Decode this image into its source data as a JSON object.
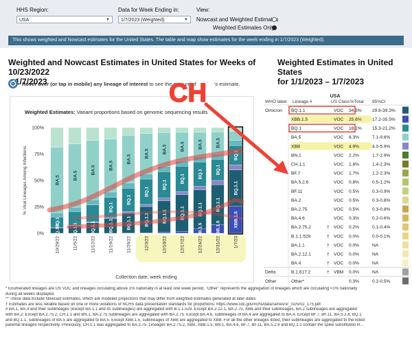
{
  "header": {
    "region_label": "HHS Region:",
    "region_value": "USA",
    "week_label": "Data for Week Ending in:",
    "week_value": "1/7/2023 (Weighted)",
    "view_label": "View:",
    "view_options": [
      "Nowcast and Weighted Estimates",
      "Weighted Estimates Only"
    ],
    "view_selected": 1
  },
  "banner": "This shows weighted and Nowcast estimates for the United States. The table and map show estimates for the week ending in 1/7/2023 (Weighted).",
  "left_heading_1": "Weighted and Nowcast Estimates in United States for Weeks of 10/23/2022",
  "left_heading_2": "– 1/7/2023",
  "hover_bold": "Hover over (or tap in mobile) any lineage of interest",
  "hover_rest": " to see the amount of",
  "hover_end": "'s estimate.",
  "right_heading_1": "Weighted Estimates in United States",
  "right_heading_2": "for 1/1/2023 – 1/7/2023",
  "annotation": "CH",
  "chart_data": {
    "type": "bar",
    "title_bold": "Weighted Estimates:",
    "title": "Variant proportions based on genomic sequencing results",
    "xlabel": "Collection date, week ending",
    "ylabel": "% Viral Lineages Among Infections",
    "ylim": [
      0,
      100
    ],
    "ytick_labels": [
      "0%",
      "25%",
      "50%",
      "75%",
      "100%"
    ],
    "categories": [
      "10/29/22",
      "11/5/22",
      "11/12/22",
      "11/19/22",
      "11/26/22",
      "12/3/22",
      "12/10/22",
      "12/17/22",
      "12/24/22",
      "12/31/22",
      "1/7/23"
    ],
    "series": [
      {
        "name": "XBB.1.5",
        "color": "#3b4fb8",
        "values": [
          0,
          0,
          0,
          0,
          0.1,
          0.3,
          0.8,
          1.5,
          4,
          8,
          25.6
        ]
      },
      {
        "name": "BQ.1.1",
        "color": "#1d5f72",
        "values": [
          5,
          7,
          10,
          14,
          19,
          25,
          30,
          35,
          37,
          38,
          34.3
        ]
      },
      {
        "name": "XBB",
        "color": "#8a86c8",
        "values": [
          0.3,
          0.5,
          0.8,
          1,
          1.5,
          2,
          2.5,
          3,
          3.5,
          4,
          4.9
        ]
      },
      {
        "name": "BQ.1",
        "color": "#2a8a95",
        "values": [
          10,
          13,
          16,
          19,
          22,
          24,
          25,
          24,
          23,
          20,
          18.1
        ]
      },
      {
        "name": "Other",
        "color": "#68b9c1",
        "values": [
          4,
          4,
          5,
          5,
          5,
          5,
          5,
          5,
          5,
          5,
          5
        ]
      },
      {
        "name": "BA.5",
        "color": "#8fd1c9",
        "values": [
          62,
          60,
          56,
          50,
          45,
          38,
          32,
          27,
          23,
          21,
          8.3
        ]
      },
      {
        "name": "BA.2 / BA.4.6 / BF.7",
        "color": "#b9e3cf",
        "values": [
          18.7,
          15.5,
          12.2,
          11,
          7.4,
          5.7,
          4.7,
          4.5,
          4.5,
          4,
          3.8
        ]
      }
    ],
    "bar_labels": [
      [
        "BA.5",
        "BQ.1.1",
        "BQ.1"
      ],
      [
        "BA.5",
        "BQ.1.1"
      ],
      [
        "BA.5",
        "BQ.1.1"
      ],
      [
        "BA.5",
        "BQ.1",
        "BQ.1.1"
      ],
      [
        "BA.5",
        "BQ.1.1",
        "BQ.1"
      ],
      [
        "BA.5",
        "BQ.1.1",
        "BQ.1"
      ],
      [
        "BA.5",
        "BQ.1.1",
        "BQ.1"
      ],
      [
        "BA.5",
        "BQ.1.1",
        "BQ.1"
      ],
      [
        "BA.5",
        "BQ.1.1",
        "BQ.1",
        "XBB.1.5"
      ],
      [
        "BA.5",
        "BQ.1.1",
        "BQ.1",
        "XBB.1.5"
      ],
      [
        "BQ.1.1",
        "BQ.1",
        "XBB.1.5"
      ]
    ]
  },
  "table": {
    "region_title": "USA",
    "headers": [
      "WHO label",
      "Lineage #",
      "US Class",
      "%Total",
      "95%CI"
    ],
    "rows": [
      {
        "who": "Omicron",
        "lineage": "BQ.1.1",
        "sym": "",
        "cls": "VOC",
        "pct": "34.3%",
        "ci": "29.6-39.3%",
        "color": "#1d5f72",
        "box": true,
        "hl": false
      },
      {
        "who": "",
        "lineage": "XBB.1.5",
        "sym": "",
        "cls": "VOC",
        "pct": "25.6%",
        "ci": "17.2-35.5%",
        "color": "#3b4fb8",
        "box": false,
        "hl": true
      },
      {
        "who": "",
        "lineage": "BQ.1",
        "sym": "",
        "cls": "VOC",
        "pct": "18.1%",
        "ci": "15.3-21.2%",
        "color": "#2a8a95",
        "box": true,
        "hl": false
      },
      {
        "who": "",
        "lineage": "BA.5",
        "sym": "",
        "cls": "VOC",
        "pct": "8.3%",
        "ci": "7.1-9.6%",
        "color": "#8fd1c9",
        "box": false,
        "hl": false
      },
      {
        "who": "",
        "lineage": "XBB",
        "sym": "",
        "cls": "VOC",
        "pct": "4.9%",
        "ci": "4.0-5.9%",
        "color": "#8a86c8",
        "box": false,
        "hl": true
      },
      {
        "who": "",
        "lineage": "BN.1",
        "sym": "",
        "cls": "VOC",
        "pct": "2.2%",
        "ci": "1.7-2.9%",
        "color": "#4b7a2c",
        "box": false,
        "hl": false
      },
      {
        "who": "",
        "lineage": "CH.1.1",
        "sym": "",
        "cls": "VOC",
        "pct": "1.8%",
        "ci": "1.4-2.3%",
        "color": "#6f7e2a",
        "box": false,
        "hl": false
      },
      {
        "who": "",
        "lineage": "BF.7",
        "sym": "",
        "cls": "VOC",
        "pct": "1.7%",
        "ci": "1.2-2.3%",
        "color": "#98a84a",
        "box": false,
        "hl": false
      },
      {
        "who": "",
        "lineage": "BA.5.2.6",
        "sym": "",
        "cls": "VOC",
        "pct": "0.8%",
        "ci": "0.5-1.2%",
        "color": "#b4c468",
        "box": false,
        "hl": false
      },
      {
        "who": "",
        "lineage": "BF.11",
        "sym": "",
        "cls": "VOC",
        "pct": "0.5%",
        "ci": "0.3-0.9%",
        "color": "#c7cf7e",
        "box": false,
        "hl": false
      },
      {
        "who": "",
        "lineage": "BA.2",
        "sym": "",
        "cls": "VOC",
        "pct": "0.5%",
        "ci": "0.3-0.8%",
        "color": "#d8d893",
        "box": false,
        "hl": false
      },
      {
        "who": "",
        "lineage": "BA.2.75",
        "sym": "",
        "cls": "VOC",
        "pct": "0.5%",
        "ci": "0.3-0.8%",
        "color": "#c9a34e",
        "box": false,
        "hl": false
      },
      {
        "who": "",
        "lineage": "BA.4.6",
        "sym": "",
        "cls": "VOC",
        "pct": "0.3%",
        "ci": "0.2-0.6%",
        "color": "#d9b55f",
        "box": false,
        "hl": false
      },
      {
        "who": "",
        "lineage": "BA.2.75.2",
        "sym": "†",
        "cls": "VOC",
        "pct": "0.2%",
        "ci": "0.1-0.4%",
        "color": "#e3c673",
        "box": false,
        "hl": false
      },
      {
        "who": "",
        "lineage": "B.1.1.529",
        "sym": "†",
        "cls": "VOC",
        "pct": "0.0%",
        "ci": "0.0-0.1%",
        "color": "#ead487",
        "box": false,
        "hl": false
      },
      {
        "who": "",
        "lineage": "BA.1.1",
        "sym": "†",
        "cls": "VOC",
        "pct": "0.0%",
        "ci": "NA",
        "color": "#f0df9b",
        "box": false,
        "hl": false
      },
      {
        "who": "",
        "lineage": "BA.2.12.1",
        "sym": "†",
        "cls": "VOC",
        "pct": "0.0%",
        "ci": "NA",
        "color": "#f4e8b0",
        "box": false,
        "hl": false
      },
      {
        "who": "",
        "lineage": "BA.4",
        "sym": "†",
        "cls": "VOC",
        "pct": "0.0%",
        "ci": "NA",
        "color": "#f7eec4",
        "box": false,
        "hl": false
      },
      {
        "who": "Delta",
        "lineage": "B.1.617.2",
        "sym": "†",
        "cls": "VBM",
        "pct": "0.0%",
        "ci": "NA",
        "color": "#a0a0a0",
        "box": false,
        "hl": false
      },
      {
        "who": "Other",
        "lineage": "Other*",
        "sym": "",
        "cls": "",
        "pct": "0.3%",
        "ci": "0.2-0.5%",
        "color": "#6b6b6b",
        "box": false,
        "hl": false
      }
    ]
  },
  "footnotes": [
    "*     Enumerated lineages are US VOC and lineages circulating above 1% nationally in at least one week period. \"Other\" represents the aggregation of lineages which are circulating <1% nationally",
    "during all weeks displayed.",
    "**    These data include Nowcast estimates, which are modeled projections that may differ from weighted estimates generated at later dates",
    "†     Estimates are less reliable based on one or more violations of NCHS data presentation standards for proportions: https://www.cdc.gov/nchs/data/series/sr_02/sr02_175.pdf",
    "#     BA.1, BA.3 and their sublineages (except BA.1.1 and its sublineages) are aggregated with B.1.1.529. Except BA.2.12.1, BA.2.75, XBB and their sublineages, BA.2 sublineages are aggregated",
    "with BA.2. Except BA.2.75.2, CH.1.1 and BN.1, BA.2.75 sublineages are aggregated with BA.2.75. Except BA.4.6, sublineages of BA.4 are aggregated to BA.4. Except BF.7, BF.11, BA.5.2.6, BQ.1",
    "and BQ.1.1, sublineages of BA.5 are aggregated to BA.5. Except XBB.1.5, sublineages of XBB are aggregated to XBB. For all the other lineages listed, their sublineages are aggregated to the listed",
    "parental lineages respectively. Previously, CH.1.1 was aggregated to BA.2.75. Lineages BA.2.75.2, XBB, XBB.1.5, BN.1, BA.4.6, BF.7, BF.11, BA.5.2.6 and BQ.1.1 contain the spike substitution R..."
  ]
}
